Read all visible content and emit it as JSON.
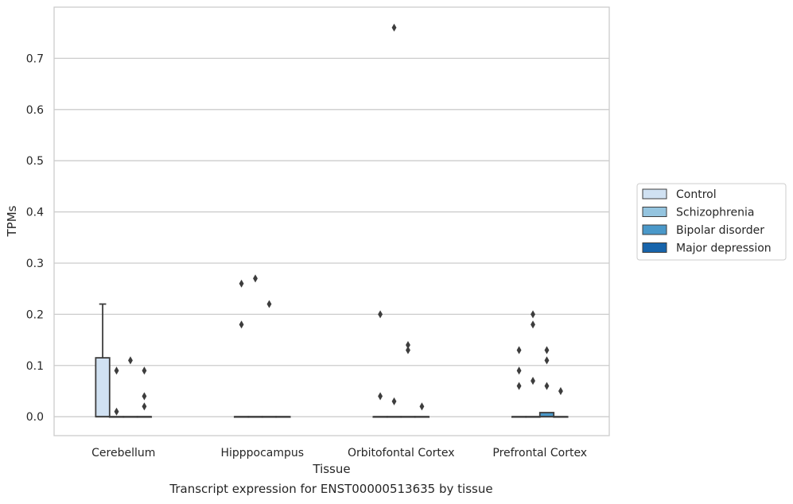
{
  "chart_data": {
    "type": "box",
    "xlabel": "Tissue",
    "ylabel": "TPMs",
    "ylim": [
      -0.037,
      0.8
    ],
    "yticks": [
      "0.0",
      "0.1",
      "0.2",
      "0.3",
      "0.4",
      "0.5",
      "0.6",
      "0.7"
    ],
    "grid": true,
    "legend_placement": "right",
    "categories": [
      "Cerebellum",
      "Hipppocampus",
      "Orbitofontal Cortex",
      "Prefrontal Cortex"
    ],
    "series": [
      {
        "name": "Control",
        "color": "#d0e1f2",
        "boxes": [
          {
            "q1": 0,
            "median": 0,
            "q3": 0.115,
            "whislo": 0,
            "whishi": 0.22,
            "fliers": []
          },
          {
            "q1": 0,
            "median": 0,
            "q3": 0,
            "whislo": 0,
            "whishi": 0,
            "fliers": [
              0.18,
              0.26
            ]
          },
          {
            "q1": 0,
            "median": 0,
            "q3": 0,
            "whislo": 0,
            "whishi": 0,
            "fliers": [
              0.04,
              0.2
            ]
          },
          {
            "q1": 0,
            "median": 0,
            "q3": 0,
            "whislo": 0,
            "whishi": 0,
            "fliers": [
              0.06,
              0.09,
              0.13
            ]
          }
        ]
      },
      {
        "name": "Schizophrenia",
        "color": "#94c4df",
        "boxes": [
          {
            "q1": 0,
            "median": 0,
            "q3": 0,
            "whislo": 0,
            "whishi": 0,
            "fliers": [
              0.01,
              0.09
            ]
          },
          {
            "q1": 0,
            "median": 0,
            "q3": 0,
            "whislo": 0,
            "whishi": 0,
            "fliers": [
              0.27
            ]
          },
          {
            "q1": 0,
            "median": 0,
            "q3": 0,
            "whislo": 0,
            "whishi": 0,
            "fliers": [
              0.03,
              0.76
            ]
          },
          {
            "q1": 0,
            "median": 0,
            "q3": 0,
            "whislo": 0,
            "whishi": 0,
            "fliers": [
              0.07,
              0.18,
              0.2
            ]
          }
        ]
      },
      {
        "name": "Bipolar disorder",
        "color": "#4a98c9",
        "boxes": [
          {
            "q1": 0,
            "median": 0,
            "q3": 0,
            "whislo": 0,
            "whishi": 0,
            "fliers": [
              0.11
            ]
          },
          {
            "q1": 0,
            "median": 0,
            "q3": 0,
            "whislo": 0,
            "whishi": 0,
            "fliers": [
              0.22
            ]
          },
          {
            "q1": 0,
            "median": 0,
            "q3": 0,
            "whislo": 0,
            "whishi": 0,
            "fliers": [
              0.13,
              0.14
            ]
          },
          {
            "q1": 0,
            "median": 0,
            "q3": 0.008,
            "whislo": 0,
            "whishi": 0.008,
            "fliers": [
              0.06,
              0.11,
              0.13
            ]
          }
        ]
      },
      {
        "name": "Major depression",
        "color": "#1764ab",
        "boxes": [
          {
            "q1": 0,
            "median": 0,
            "q3": 0,
            "whislo": 0,
            "whishi": 0,
            "fliers": [
              0.02,
              0.04,
              0.09
            ]
          },
          {
            "q1": 0,
            "median": 0,
            "q3": 0,
            "whislo": 0,
            "whishi": 0,
            "fliers": []
          },
          {
            "q1": 0,
            "median": 0,
            "q3": 0,
            "whislo": 0,
            "whishi": 0,
            "fliers": [
              0.02
            ]
          },
          {
            "q1": 0,
            "median": 0,
            "q3": 0,
            "whislo": 0,
            "whishi": 0,
            "fliers": [
              0.05
            ]
          }
        ]
      }
    ]
  },
  "caption": "Transcript expression for ENST00000513635 by tissue"
}
